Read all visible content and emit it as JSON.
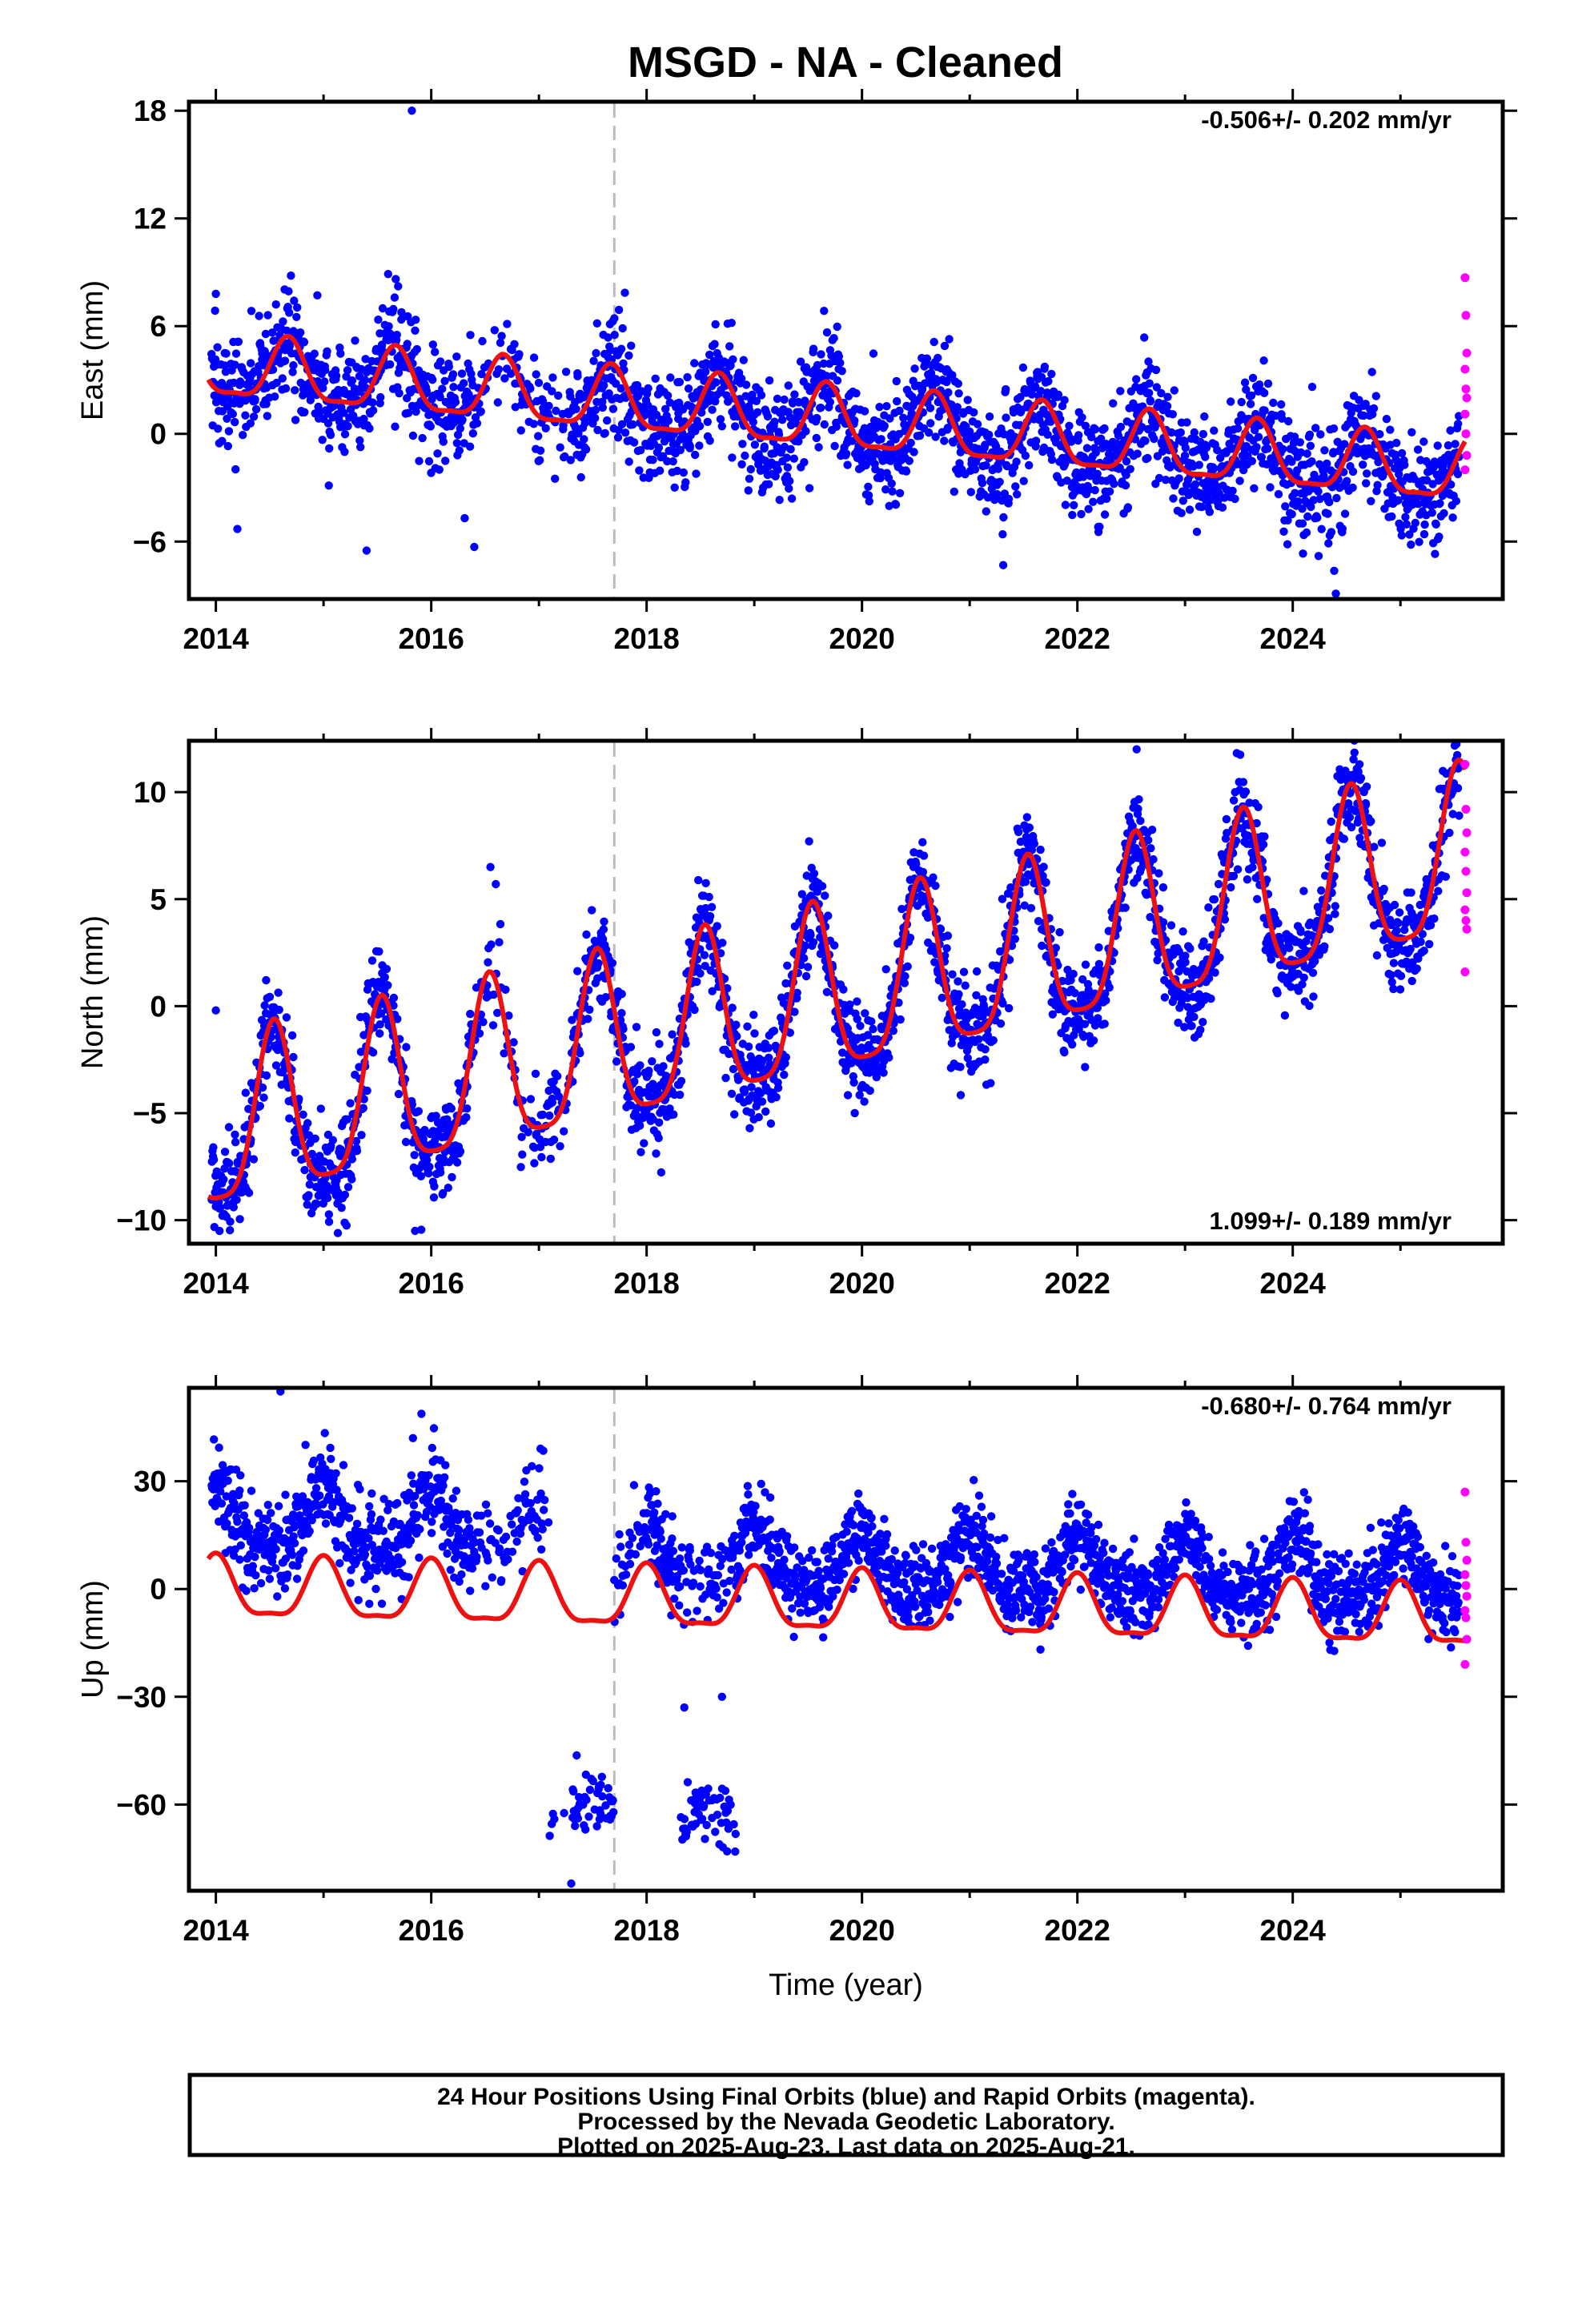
{
  "title": "MSGD  - NA - Cleaned",
  "colors": {
    "final": "#0000ff",
    "rapid": "#ff00ff",
    "fit": "#ee1111",
    "event": "#bbbbbb"
  },
  "footer": {
    "line1": "24 Hour Positions Using Final Orbits (blue) and Rapid Orbits (magenta).",
    "line2": "Processed by the Nevada Geodetic Laboratory.",
    "line3": "Plotted on 2025-Aug-23. Last data on 2025-Aug-21."
  },
  "chart_data": [
    {
      "type": "scatter",
      "id": "east",
      "ylabel": "East (mm)",
      "xlabel": "",
      "rate": "-0.506+/- 0.202 mm/yr",
      "rate_position": "top-right",
      "xlim": [
        2013.75,
        2025.95
      ],
      "ylim": [
        -9.2,
        18.5
      ],
      "xticks": [
        2014,
        2016,
        2018,
        2020,
        2022,
        2024
      ],
      "yticks": [
        -6,
        0,
        6,
        12,
        18
      ],
      "event_x": 2017.7,
      "trend": {
        "slope": -0.506,
        "ref_year": 2019.8,
        "offset": 0.65,
        "amp_annual": 1.7,
        "phase_peak": 0.67,
        "amp_semiannual": 0.5
      },
      "scatter_sd": 1.55,
      "outliers": [
        [
          2015.82,
          18.0
        ],
        [
          2015.6,
          8.9
        ],
        [
          2014.0,
          7.8
        ],
        [
          2016.4,
          -6.3
        ],
        [
          2015.4,
          -6.5
        ],
        [
          2024.4,
          -8.9
        ],
        [
          2014.2,
          -5.3
        ]
      ],
      "rapid_values": [
        8.7,
        6.6,
        4.5,
        3.6,
        2.5,
        2.0,
        1.1,
        0.0,
        -1.2,
        -2.0
      ]
    },
    {
      "type": "scatter",
      "id": "north",
      "ylabel": "North (mm)",
      "xlabel": "",
      "rate": "1.099+/- 0.189 mm/yr",
      "rate_position": "bottom-right",
      "xlim": [
        2013.75,
        2025.95
      ],
      "ylim": [
        -11.1,
        12.4
      ],
      "xticks": [
        2014,
        2016,
        2018,
        2020,
        2022,
        2024
      ],
      "yticks": [
        -10,
        -5,
        0,
        5,
        10
      ],
      "event_x": 2017.7,
      "trend": {
        "slope": 1.099,
        "ref_year": 2019.8,
        "offset": 0.4,
        "amp_annual": 3.9,
        "phase_peak": 0.54,
        "amp_semiannual": 0.9
      },
      "scatter_sd": 1.15,
      "outliers": [
        [
          2016.55,
          6.5
        ],
        [
          2022.55,
          12.0
        ],
        [
          2015.85,
          -10.5
        ],
        [
          2014.0,
          -0.2
        ],
        [
          2016.6,
          5.7
        ]
      ],
      "rapid_values": [
        11.3,
        9.2,
        8.1,
        7.2,
        6.3,
        5.3,
        4.5,
        4.0,
        3.6,
        1.6
      ]
    },
    {
      "type": "scatter",
      "id": "up",
      "ylabel": "Up (mm)",
      "xlabel": "Time (year)",
      "rate": "-0.680+/- 0.764 mm/yr",
      "rate_position": "top-right",
      "xlim": [
        2013.75,
        2025.95
      ],
      "ylim": [
        -84,
        56
      ],
      "xticks": [
        2014,
        2016,
        2018,
        2020,
        2022,
        2024
      ],
      "yticks": [
        -60,
        -30,
        0,
        30
      ],
      "event_x": 2017.7,
      "trend": {
        "slope": -0.68,
        "ref_year": 2019.8,
        "offset": -4.6,
        "amp_annual": 8.2,
        "phase_peak": 0.0,
        "amp_semiannual": 2.5
      },
      "scatter_sd": 5.5,
      "outliers": [
        [
          2014.6,
          55.0
        ],
        [
          2015.83,
          42.0
        ],
        [
          2018.35,
          -33.0
        ],
        [
          2018.7,
          -30.0
        ],
        [
          2017.3,
          -82.0
        ]
      ],
      "segments": [
        {
          "x0": 2013.95,
          "x1": 2017.1,
          "offset": 19.0,
          "sd": 6.5
        },
        {
          "x0": 2017.05,
          "x1": 2017.7,
          "offset": -62.0,
          "sd": 5.0
        },
        {
          "x0": 2018.3,
          "x1": 2018.85,
          "offset": -64.0,
          "sd": 5.5
        }
      ],
      "rapid_values": [
        27.0,
        13.0,
        8.0,
        4.0,
        1.0,
        -2.0,
        -6.0,
        -8.0,
        -14.0,
        -21.0
      ]
    }
  ]
}
